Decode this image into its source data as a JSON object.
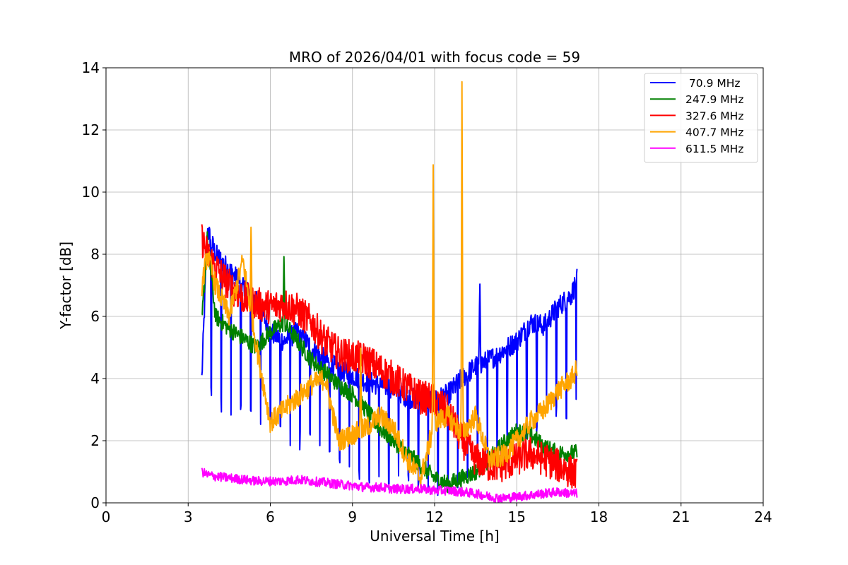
{
  "chart_data": {
    "type": "line",
    "title": "MRO of 2026/04/01 with focus code = 59",
    "xlabel": "Universal Time [h]",
    "ylabel": "Y-factor [dB]",
    "xlim": [
      0,
      24
    ],
    "ylim": [
      0,
      14
    ],
    "xticks": [
      0,
      3,
      6,
      9,
      12,
      15,
      18,
      21,
      24
    ],
    "yticks": [
      0,
      2,
      4,
      6,
      8,
      10,
      12,
      14
    ],
    "grid": true,
    "legend_position": "top-right",
    "series": [
      {
        "name": " 70.9 MHz",
        "color": "#0000ff",
        "x": [
          3.5,
          3.7,
          4.0,
          4.5,
          5.0,
          5.5,
          6.0,
          6.5,
          7.0,
          7.5,
          8.0,
          8.5,
          9.0,
          9.5,
          10.0,
          10.5,
          11.0,
          11.5,
          12.0,
          12.5,
          13.0,
          13.5,
          14.0,
          14.5,
          15.0,
          15.5,
          16.0,
          16.5,
          17.0,
          17.2
        ],
        "values": [
          4.0,
          8.8,
          8.0,
          7.5,
          7.0,
          6.5,
          5.5,
          5.2,
          5.5,
          5.0,
          4.6,
          4.3,
          4.1,
          3.9,
          3.8,
          3.7,
          3.4,
          3.3,
          3.3,
          3.5,
          4.0,
          4.4,
          4.6,
          4.9,
          5.2,
          5.8,
          5.7,
          6.3,
          6.7,
          7.2
        ],
        "dip_values": [
          3.6,
          3.6,
          3.5,
          2.8,
          2.8,
          2.7,
          2.4,
          2.3,
          2.0,
          2.0,
          1.6,
          1.3,
          1.2,
          1.0,
          0.8,
          0.7,
          0.7,
          0.6,
          0.4,
          0.4,
          0.6,
          1.2,
          1.8,
          2.0,
          2.2,
          2.4,
          2.8,
          3.0,
          2.9,
          3.0
        ],
        "spikes": [
          {
            "x": 13.65,
            "y": 7.3
          }
        ]
      },
      {
        "name": "247.9 MHz",
        "color": "#008000",
        "x": [
          3.5,
          3.7,
          4.0,
          4.5,
          5.0,
          5.5,
          6.0,
          6.5,
          7.0,
          7.5,
          8.0,
          8.5,
          9.0,
          9.5,
          10.0,
          10.5,
          11.0,
          11.5,
          12.0,
          12.5,
          13.0,
          13.5,
          14.0,
          14.5,
          15.0,
          15.5,
          16.0,
          16.5,
          17.0,
          17.2
        ],
        "values": [
          5.8,
          8.5,
          6.0,
          5.6,
          5.3,
          5.0,
          5.5,
          5.8,
          5.2,
          4.6,
          4.2,
          3.8,
          3.5,
          3.0,
          2.4,
          2.0,
          1.6,
          1.2,
          0.8,
          0.6,
          0.8,
          1.0,
          1.4,
          1.9,
          2.3,
          2.2,
          1.8,
          1.6,
          1.6,
          1.6
        ],
        "spikes": [
          {
            "x": 6.5,
            "y": 8.0
          }
        ]
      },
      {
        "name": "327.6 MHz",
        "color": "#ff0000",
        "x": [
          3.5,
          3.7,
          4.0,
          4.5,
          5.0,
          5.5,
          6.0,
          6.5,
          7.0,
          7.5,
          8.0,
          8.5,
          9.0,
          9.5,
          10.0,
          10.5,
          11.0,
          11.5,
          12.0,
          12.5,
          13.0,
          13.5,
          14.0,
          14.5,
          15.0,
          15.5,
          16.0,
          16.5,
          17.0,
          17.2
        ],
        "values": [
          8.5,
          8.0,
          7.6,
          7.0,
          6.6,
          6.4,
          6.3,
          6.4,
          6.2,
          5.8,
          5.2,
          4.8,
          4.7,
          4.6,
          4.3,
          4.0,
          3.7,
          3.4,
          3.3,
          2.9,
          2.0,
          1.4,
          1.2,
          1.2,
          1.4,
          1.6,
          1.4,
          1.2,
          1.0,
          0.9
        ]
      },
      {
        "name": "407.7 MHz",
        "color": "#ffa500",
        "x": [
          3.5,
          3.7,
          4.0,
          4.5,
          5.0,
          5.5,
          6.0,
          6.5,
          7.0,
          7.5,
          8.0,
          8.5,
          9.0,
          9.5,
          10.0,
          10.5,
          11.0,
          11.5,
          12.0,
          12.5,
          13.0,
          13.5,
          14.0,
          14.5,
          15.0,
          15.5,
          16.0,
          16.5,
          17.0,
          17.2
        ],
        "values": [
          7.0,
          8.0,
          7.0,
          6.0,
          7.8,
          5.0,
          2.6,
          3.0,
          3.4,
          3.8,
          4.0,
          2.0,
          2.2,
          2.4,
          2.8,
          2.4,
          1.4,
          0.8,
          2.6,
          2.8,
          2.2,
          2.8,
          1.4,
          1.5,
          2.0,
          2.6,
          3.0,
          3.6,
          4.0,
          4.3
        ],
        "spikes": [
          {
            "x": 5.3,
            "y": 9.2
          },
          {
            "x": 11.95,
            "y": 11.3
          },
          {
            "x": 13.0,
            "y": 14.0
          },
          {
            "x": 9.3,
            "y": 5.0
          }
        ]
      },
      {
        "name": "611.5 MHz",
        "color": "#ff00ff",
        "x": [
          3.5,
          3.7,
          4.0,
          4.5,
          5.0,
          5.5,
          6.0,
          6.5,
          7.0,
          7.5,
          8.0,
          8.5,
          9.0,
          9.5,
          10.0,
          10.5,
          11.0,
          11.5,
          12.0,
          12.5,
          13.0,
          13.5,
          14.0,
          14.5,
          15.0,
          15.5,
          16.0,
          16.5,
          17.0,
          17.2
        ],
        "values": [
          1.0,
          0.9,
          0.85,
          0.8,
          0.75,
          0.7,
          0.7,
          0.7,
          0.75,
          0.7,
          0.65,
          0.6,
          0.55,
          0.5,
          0.5,
          0.45,
          0.45,
          0.45,
          0.4,
          0.4,
          0.35,
          0.3,
          0.2,
          0.15,
          0.2,
          0.25,
          0.3,
          0.35,
          0.3,
          0.3
        ]
      }
    ]
  }
}
